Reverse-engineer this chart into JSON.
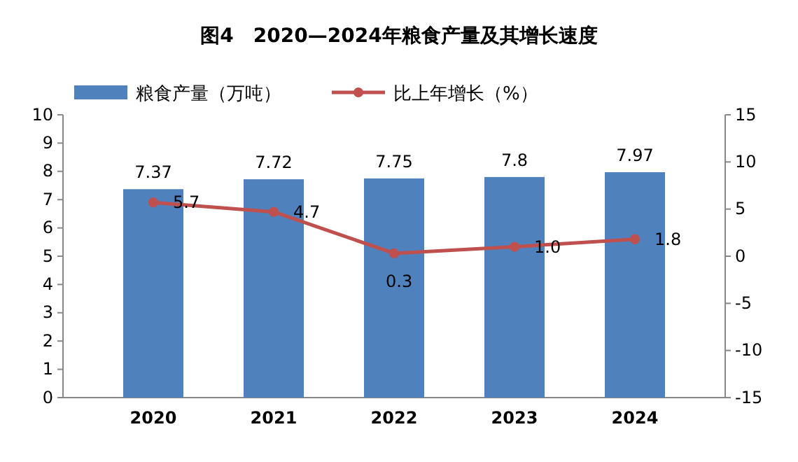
{
  "chart_data": {
    "type": "bar",
    "title": "图4　2020—2024年粮食产量及其增长速度",
    "categories": [
      "2020",
      "2021",
      "2022",
      "2023",
      "2024"
    ],
    "series": [
      {
        "name": "粮食产量（万吨）",
        "color": "#4f81bd",
        "values": [
          7.37,
          7.72,
          7.75,
          7.8,
          7.97
        ],
        "value_labels": [
          "7.37",
          "7.72",
          "7.75",
          "7.8",
          "7.97"
        ]
      },
      {
        "name": "比上年增长（%）",
        "type": "line",
        "axis": "y2",
        "color": "#c0504d",
        "marker": "circle",
        "values": [
          5.7,
          4.7,
          0.3,
          1.0,
          1.8
        ],
        "value_labels": [
          "5.7",
          "4.7",
          "0.3",
          "1.0",
          "1.8"
        ]
      }
    ],
    "ylim": [
      0,
      10
    ],
    "yticks": [
      0,
      1,
      2,
      3,
      4,
      5,
      6,
      7,
      8,
      9,
      10
    ],
    "y2lim": [
      -15,
      15
    ],
    "y2ticks": [
      -15,
      -10,
      -5,
      0,
      5,
      10,
      15
    ],
    "legend": "top left",
    "grid": false
  }
}
